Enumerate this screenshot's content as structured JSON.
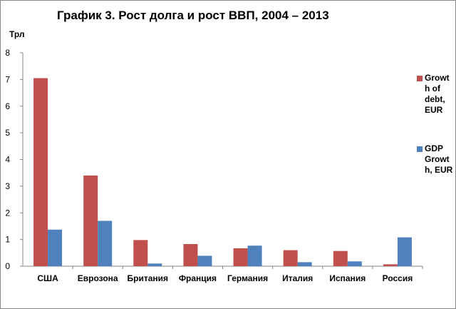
{
  "chart_data": {
    "type": "bar",
    "title": "График 3. Рост долга и рост ВВП, 2004 – 2013",
    "ylabel": "Трл",
    "xlabel": "",
    "ylim": [
      0,
      8
    ],
    "yticks": [
      0,
      1,
      2,
      3,
      4,
      5,
      6,
      7,
      8
    ],
    "grid": false,
    "legend_position": "right",
    "categories": [
      "США",
      "Еврозона",
      "Британия",
      "Франция",
      "Германия",
      "Италия",
      "Испания",
      "Россия"
    ],
    "series": [
      {
        "name": "Growth of debt, EUR",
        "legend_lines": [
          "Growt",
          "h of",
          "debt,",
          "EUR"
        ],
        "color": "#c0504d",
        "values": [
          7.05,
          3.4,
          0.98,
          0.83,
          0.67,
          0.6,
          0.57,
          0.07
        ]
      },
      {
        "name": "GDP Growth, EUR",
        "legend_lines": [
          "GDP",
          "Growt",
          "h, EUR"
        ],
        "color": "#4f81bd",
        "values": [
          1.37,
          1.7,
          0.1,
          0.39,
          0.77,
          0.15,
          0.18,
          1.08
        ]
      }
    ]
  }
}
